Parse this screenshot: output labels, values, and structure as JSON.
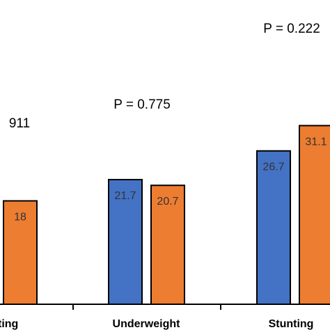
{
  "chart_data": {
    "type": "bar",
    "categories": [
      "Wasting",
      "Underweight",
      "Stunting"
    ],
    "category_labels_visible": [
      "ting",
      "Underweight",
      "Stunting"
    ],
    "series": [
      {
        "values": [
          null,
          21.7,
          26.7
        ],
        "color": "#4472C4"
      },
      {
        "values": [
          18,
          20.7,
          31.1
        ],
        "color": "#ED7D31"
      }
    ],
    "data_labels": [
      [
        "",
        "21.7",
        "26.7"
      ],
      [
        "18",
        "20.7",
        "31.1"
      ]
    ],
    "p_values": [
      "911",
      "P = 0.775",
      "P = 0.222"
    ],
    "ylim": [
      0,
      40
    ],
    "grid": false,
    "legend": "none"
  }
}
